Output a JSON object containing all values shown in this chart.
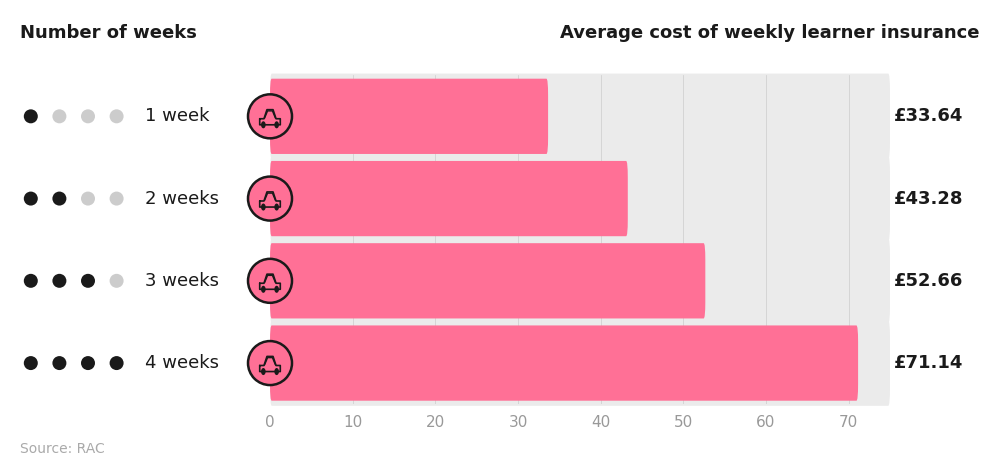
{
  "categories": [
    "1 week",
    "2 weeks",
    "3 weeks",
    "4 weeks"
  ],
  "values": [
    33.64,
    43.28,
    52.66,
    71.14
  ],
  "labels": [
    "£33.64",
    "£43.28",
    "£52.66",
    "£71.14"
  ],
  "dots": [
    1,
    2,
    3,
    4
  ],
  "bar_color": "#FF7096",
  "bar_height": 0.52,
  "x_max": 75,
  "xticks": [
    0,
    10,
    20,
    30,
    40,
    50,
    60,
    70
  ],
  "title_left": "Number of weeks",
  "title_right": "Average cost of weekly learner insurance",
  "source": "Source: RAC",
  "bg_color": "#FFFFFF",
  "row_bg_color": "#EBEBEB",
  "dot_color_filled": "#1A1A1A",
  "dot_color_empty": "#CCCCCC",
  "label_fontsize": 13,
  "value_fontsize": 13,
  "title_fontsize": 13,
  "source_fontsize": 10,
  "car_icon_color": "#FF7096",
  "car_icon_border": "#1A1A1A",
  "tick_color": "#999999",
  "tick_fontsize": 11
}
